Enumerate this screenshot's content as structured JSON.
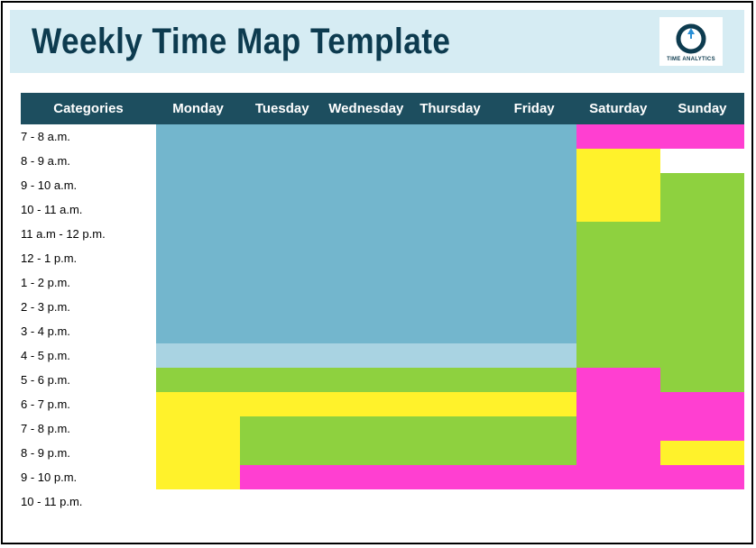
{
  "title": "Weekly Time Map Template",
  "logo_label": "TIME ANALYTICS",
  "colors": {
    "header_bg": "#1d4e5f",
    "title_bg": "#d6ecf3",
    "title_text": "#0d3b4f",
    "blue": "#73b6cd",
    "blue_border": "#8cc3d6",
    "ltblue": "#a9d3e2",
    "green": "#8ed13f",
    "yellow": "#fff22b",
    "pink": "#ff3fd1",
    "white": "#ffffff"
  },
  "columns": [
    "Categories",
    "Monday",
    "Tuesday",
    "Wednesday",
    "Thursday",
    "Friday",
    "Saturday",
    "Sunday"
  ],
  "rows": [
    {
      "label": "7 - 8 a.m.",
      "cells": [
        "blue",
        "blue",
        "blue",
        "blue",
        "blue",
        "pink",
        "pink"
      ]
    },
    {
      "label": "8 - 9 a.m.",
      "cells": [
        "blue",
        "blue",
        "blue",
        "blue",
        "blue",
        "yellow",
        "white"
      ]
    },
    {
      "label": "9 - 10 a.m.",
      "cells": [
        "blue",
        "blue",
        "blue",
        "blue",
        "blue",
        "yellow",
        "green"
      ]
    },
    {
      "label": "10 - 11 a.m.",
      "cells": [
        "blue",
        "blue",
        "blue",
        "blue",
        "blue",
        "yellow",
        "green"
      ]
    },
    {
      "label": "11 a.m - 12 p.m.",
      "cells": [
        "blue",
        "blue",
        "blue",
        "blue",
        "blue",
        "green",
        "green"
      ]
    },
    {
      "label": "12 - 1 p.m.",
      "cells": [
        "blue",
        "blue",
        "blue",
        "blue",
        "blue",
        "green",
        "green"
      ]
    },
    {
      "label": "1 - 2 p.m.",
      "cells": [
        "blue",
        "blue",
        "blue",
        "blue",
        "blue",
        "green",
        "green"
      ]
    },
    {
      "label": "2 - 3 p.m.",
      "cells": [
        "blue",
        "blue",
        "blue",
        "blue",
        "blue",
        "green",
        "green"
      ]
    },
    {
      "label": "3 - 4 p.m.",
      "cells": [
        "blue",
        "blue",
        "blue",
        "blue",
        "blue",
        "green",
        "green"
      ]
    },
    {
      "label": "4 - 5 p.m.",
      "cells": [
        "ltblue",
        "ltblue",
        "ltblue",
        "ltblue",
        "ltblue",
        "green",
        "green"
      ]
    },
    {
      "label": "5 - 6 p.m.",
      "cells": [
        "green",
        "green",
        "green",
        "green",
        "green",
        "pink",
        "green"
      ]
    },
    {
      "label": "6 - 7 p.m.",
      "cells": [
        "yellow",
        "yellow",
        "yellow",
        "yellow",
        "yellow",
        "pink",
        "pink"
      ]
    },
    {
      "label": "7 - 8 p.m.",
      "cells": [
        "yellow",
        "green",
        "green",
        "green",
        "green",
        "pink",
        "pink"
      ]
    },
    {
      "label": "8 - 9 p.m.",
      "cells": [
        "yellow",
        "green",
        "green",
        "green",
        "green",
        "pink",
        "yellow"
      ]
    },
    {
      "label": "9 - 10 p.m.",
      "cells": [
        "yellow",
        "pink",
        "pink",
        "pink",
        "pink",
        "pink",
        "pink"
      ]
    },
    {
      "label": "10 - 11 p.m.",
      "cells": [
        "white",
        "white",
        "white",
        "white",
        "white",
        "white",
        "white"
      ]
    }
  ]
}
